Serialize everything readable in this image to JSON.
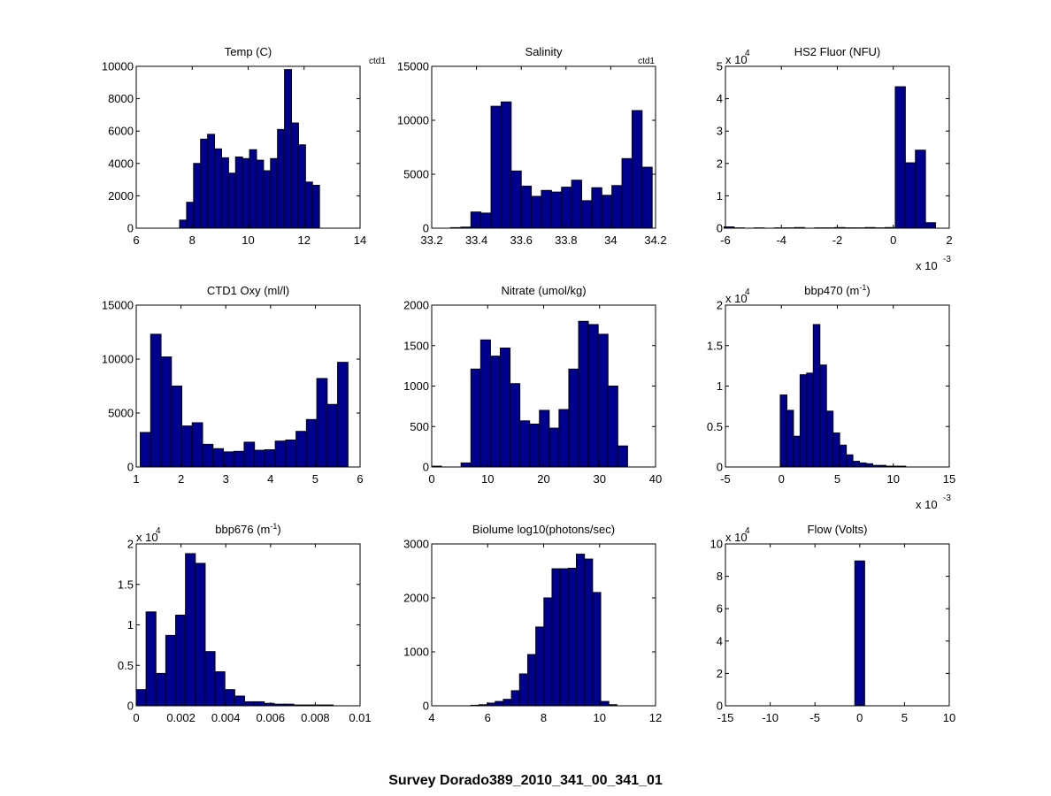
{
  "figure_title": "Survey Dorado389_2010_341_00_341_01",
  "colors": {
    "bar_fill": "#00008f",
    "bar_edge": "#000000",
    "axes": "#000000",
    "background": "#ffffff"
  },
  "chart_data": [
    {
      "type": "bar",
      "title": "Temp (C)",
      "corner_note": "ctd1",
      "xlim": [
        6,
        14
      ],
      "ylim": [
        0,
        10000
      ],
      "xticks": [
        6,
        8,
        10,
        12,
        14
      ],
      "xtick_labels": [
        "6",
        "8",
        "10",
        "12",
        "14"
      ],
      "yticks": [
        0,
        2000,
        4000,
        6000,
        8000,
        10000
      ],
      "ytick_labels": [
        "0",
        "2000",
        "4000",
        "6000",
        "8000",
        "10000"
      ],
      "bin_edges_start": 7.55,
      "bin_width": 0.25,
      "values": [
        500,
        1600,
        4000,
        5500,
        5800,
        4900,
        4350,
        3400,
        4400,
        4300,
        4850,
        4200,
        3550,
        4300,
        6100,
        9800,
        6500,
        5150,
        2850,
        2650
      ]
    },
    {
      "type": "bar",
      "title": "Salinity",
      "corner_note": "ctd1",
      "xlim": [
        33.2,
        34.2
      ],
      "ylim": [
        0,
        15000
      ],
      "xticks": [
        33.2,
        33.4,
        33.6,
        33.8,
        34.0,
        34.2
      ],
      "xtick_labels": [
        "33.2",
        "33.4",
        "33.6",
        "33.8",
        "34",
        "34.2"
      ],
      "yticks": [
        0,
        5000,
        10000,
        15000
      ],
      "ytick_labels": [
        "0",
        "5000",
        "10000",
        "15000"
      ],
      "bin_edges_start": 33.24,
      "bin_width": 0.045,
      "values": [
        0,
        50,
        100,
        1500,
        1400,
        11300,
        11700,
        5300,
        3900,
        2950,
        3500,
        3350,
        3800,
        4450,
        2550,
        3750,
        3050,
        3950,
        6450,
        10900,
        5650
      ]
    },
    {
      "type": "bar",
      "title": "HS2 Fluor (NFU)",
      "y_multiplier": "x 10",
      "y_multiplier_exp": "4",
      "x_multiplier": "x 10",
      "x_multiplier_exp": "-3",
      "xlim": [
        -6,
        2
      ],
      "ylim": [
        0,
        5
      ],
      "xticks": [
        -6,
        -4,
        -2,
        0,
        2
      ],
      "xtick_labels": [
        "-6",
        "-4",
        "-2",
        "0",
        "2"
      ],
      "yticks": [
        0,
        1,
        2,
        3,
        4,
        5
      ],
      "ytick_labels": [
        "0",
        "1",
        "2",
        "3",
        "4",
        "5"
      ],
      "bin_edges_start": -6.05,
      "bin_width": 0.36,
      "values": [
        0.04,
        0.01,
        0.0,
        0.01,
        0.0,
        0.01,
        0.01,
        0.02,
        0.0,
        0.01,
        0.01,
        0.02,
        0.01,
        0.01,
        0.02,
        0.01,
        0.02,
        4.37,
        2.02,
        2.41,
        0.17
      ]
    },
    {
      "type": "bar",
      "title": "CTD1 Oxy (ml/l)",
      "xlim": [
        1,
        6
      ],
      "ylim": [
        0,
        15000
      ],
      "xticks": [
        1,
        2,
        3,
        4,
        5,
        6
      ],
      "xtick_labels": [
        "1",
        "2",
        "3",
        "4",
        "5",
        "6"
      ],
      "yticks": [
        0,
        5000,
        10000,
        15000
      ],
      "ytick_labels": [
        "0",
        "5000",
        "10000",
        "15000"
      ],
      "bin_edges_start": 1.09,
      "bin_width": 0.232,
      "values": [
        3200,
        12300,
        10200,
        7500,
        3800,
        4100,
        2100,
        1700,
        1400,
        1450,
        2300,
        1550,
        1600,
        2400,
        2500,
        3300,
        4400,
        8200,
        5800,
        9700
      ]
    },
    {
      "type": "bar",
      "title": "Nitrate (umol/kg)",
      "xlim": [
        0,
        40
      ],
      "ylim": [
        0,
        2000
      ],
      "xticks": [
        0,
        10,
        20,
        30,
        40
      ],
      "xtick_labels": [
        "0",
        "10",
        "20",
        "30",
        "40"
      ],
      "yticks": [
        0,
        500,
        1000,
        1500,
        2000
      ],
      "ytick_labels": [
        "0",
        "500",
        "1000",
        "1500",
        "2000"
      ],
      "bin_edges_start": 0,
      "bin_width": 1.75,
      "values": [
        10,
        0,
        0,
        50,
        1210,
        1570,
        1370,
        1470,
        1030,
        570,
        530,
        700,
        480,
        710,
        1210,
        1800,
        1760,
        1640,
        1000,
        260
      ]
    },
    {
      "type": "bar",
      "title": "bbp470 (m",
      "title_sup": "-1",
      "title_end": ")",
      "y_multiplier": "x 10",
      "y_multiplier_exp": "4",
      "x_multiplier": "x 10",
      "x_multiplier_exp": "-3",
      "xlim": [
        -5,
        15
      ],
      "ylim": [
        0,
        2
      ],
      "xticks": [
        -5,
        0,
        5,
        10,
        15
      ],
      "xtick_labels": [
        "-5",
        "0",
        "5",
        "10",
        "15"
      ],
      "yticks": [
        0,
        0.5,
        1,
        1.5,
        2
      ],
      "ytick_labels": [
        "0",
        "0.5",
        "1",
        "1.5",
        "2"
      ],
      "bin_edges_start": -0.1,
      "bin_width": 0.59,
      "values": [
        0.89,
        0.7,
        0.38,
        1.14,
        1.16,
        1.76,
        1.26,
        0.69,
        0.42,
        0.27,
        0.15,
        0.07,
        0.05,
        0.04,
        0.02,
        0.02,
        0.01,
        0.01,
        0.01
      ]
    },
    {
      "type": "bar",
      "title": "bbp676 (m",
      "title_sup": "-1",
      "title_end": ")",
      "y_multiplier": "x 10",
      "y_multiplier_exp": "4",
      "xlim": [
        0,
        0.01
      ],
      "ylim": [
        0,
        2
      ],
      "xticks": [
        0,
        0.002,
        0.004,
        0.006,
        0.008,
        0.01
      ],
      "xtick_labels": [
        "0",
        "0.002",
        "0.004",
        "0.006",
        "0.008",
        "0.01"
      ],
      "yticks": [
        0,
        0.5,
        1,
        1.5,
        2
      ],
      "ytick_labels": [
        "0",
        "0.5",
        "1",
        "1.5",
        "2"
      ],
      "bin_edges_start": 0,
      "bin_width": 0.00044,
      "values": [
        0.2,
        1.16,
        0.4,
        0.87,
        1.12,
        1.88,
        1.76,
        0.67,
        0.42,
        0.2,
        0.12,
        0.05,
        0.05,
        0.03,
        0.02,
        0.02,
        0.01,
        0.01,
        0.01,
        0.01
      ]
    },
    {
      "type": "bar",
      "title": "Biolume log10(photons/sec)",
      "xlim": [
        4,
        12
      ],
      "ylim": [
        0,
        3000
      ],
      "xticks": [
        4,
        6,
        8,
        10,
        12
      ],
      "xtick_labels": [
        "4",
        "6",
        "8",
        "10",
        "12"
      ],
      "yticks": [
        0,
        1000,
        2000,
        3000
      ],
      "ytick_labels": [
        "0",
        "1000",
        "2000",
        "3000"
      ],
      "bin_edges_start": 5.4,
      "bin_width": 0.29,
      "values": [
        10,
        20,
        50,
        80,
        120,
        280,
        590,
        950,
        1460,
        2000,
        2540,
        2540,
        2550,
        2810,
        2720,
        2100,
        80,
        20
      ]
    },
    {
      "type": "bar",
      "title": "Flow (Volts)",
      "y_multiplier": "x 10",
      "y_multiplier_exp": "4",
      "xlim": [
        -15,
        10
      ],
      "ylim": [
        0,
        10
      ],
      "xticks": [
        -15,
        -10,
        -5,
        0,
        5,
        10
      ],
      "xtick_labels": [
        "-15",
        "-10",
        "-5",
        "0",
        "5",
        "10"
      ],
      "yticks": [
        0,
        2,
        4,
        6,
        8,
        10
      ],
      "ytick_labels": [
        "0",
        "2",
        "4",
        "6",
        "8",
        "10"
      ],
      "bin_edges_start": -0.55,
      "bin_width": 1.1,
      "values": [
        8.95
      ]
    }
  ]
}
